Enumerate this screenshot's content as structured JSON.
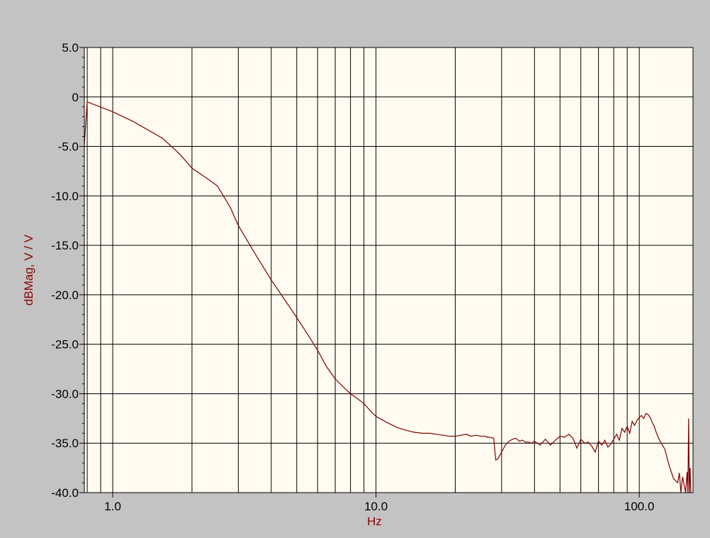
{
  "colors": {
    "background": "#c3c3c3",
    "plot_background": "#fffbf0",
    "grid": "#000000",
    "trace": "#7f0000",
    "label": "#8b0000"
  },
  "chart_data": {
    "type": "line",
    "title": "",
    "xlabel": "Hz",
    "ylabel": "dBMag, V / V",
    "x_scale": "log",
    "xlim": [
      0.78,
      160
    ],
    "ylim": [
      -40,
      5
    ],
    "grid": true,
    "x_tick_labels": [
      "1.0",
      "10.0",
      "100.0"
    ],
    "x_ticks": [
      1,
      10,
      100
    ],
    "y_tick_labels": [
      "5.0",
      "0",
      "-5.0",
      "-10.0",
      "-15.0",
      "-20.0",
      "-25.0",
      "-30.0",
      "-35.0",
      "-40.0"
    ],
    "y_ticks": [
      5,
      0,
      -5,
      -10,
      -15,
      -20,
      -25,
      -30,
      -35,
      -40
    ],
    "series": [
      {
        "x": [
          0.78,
          0.8,
          1.0,
          1.2,
          1.55,
          1.8,
          2.0,
          2.3,
          2.5,
          2.8,
          3.0,
          3.5,
          4.0,
          4.5,
          5.0,
          5.5,
          6.0,
          6.5,
          7.0,
          7.5,
          8.0,
          8.5,
          9.0,
          9.5,
          10.0,
          11.0,
          12.0,
          13.0,
          14.0,
          15.0,
          16.0,
          17.0,
          18.0,
          19.0,
          20.0,
          21.0,
          22.0,
          23.0,
          24.0,
          25.0,
          26.0,
          26.5,
          27.0,
          28.0,
          28.5,
          29.0,
          30.0,
          31.0,
          32.0,
          33.0,
          34.0,
          35.0,
          36.0,
          37.0,
          38.0,
          39.0,
          40.0,
          42.0,
          44.0,
          46.0,
          48.0,
          50.0,
          52.0,
          54.0,
          56.0,
          58.0,
          60.0,
          62.0,
          64.0,
          66.0,
          68.0,
          70.0,
          72.0,
          74.0,
          76.0,
          78.0,
          80.0,
          82.0,
          84.0,
          86.0,
          88.0,
          90.0,
          92.0,
          94.0,
          96.0,
          98.0,
          100.0,
          102.0,
          104.0,
          106.0,
          108.0,
          110.0,
          112.0,
          114.0,
          116.0,
          118.0,
          120.0,
          125.0,
          130.0,
          135.0,
          140.0,
          142.0,
          144.0,
          146.0,
          148.0,
          150.0,
          152.0,
          153.0,
          154.0,
          155.0,
          156.0,
          157.0
        ],
        "values": [
          -4.8,
          -0.5,
          -1.5,
          -2.5,
          -4.2,
          -5.8,
          -7.2,
          -8.3,
          -9.0,
          -11.2,
          -13.0,
          -16.0,
          -18.5,
          -20.5,
          -22.3,
          -24.0,
          -25.6,
          -27.3,
          -28.5,
          -29.3,
          -30.0,
          -30.5,
          -31.0,
          -31.7,
          -32.3,
          -32.9,
          -33.4,
          -33.7,
          -33.9,
          -34.0,
          -34.0,
          -34.1,
          -34.2,
          -34.3,
          -34.3,
          -34.2,
          -34.1,
          -34.3,
          -34.2,
          -34.3,
          -34.3,
          -34.4,
          -34.4,
          -34.5,
          -36.7,
          -36.6,
          -35.9,
          -35.2,
          -34.8,
          -34.6,
          -34.5,
          -34.8,
          -34.7,
          -34.9,
          -34.9,
          -35.0,
          -34.8,
          -35.2,
          -34.6,
          -35.2,
          -34.7,
          -34.3,
          -34.4,
          -34.1,
          -34.5,
          -35.5,
          -34.6,
          -35.0,
          -34.9,
          -35.3,
          -35.9,
          -34.8,
          -35.2,
          -34.7,
          -35.4,
          -35.1,
          -34.6,
          -34.1,
          -34.7,
          -33.5,
          -33.9,
          -33.3,
          -34.0,
          -32.8,
          -33.2,
          -32.7,
          -32.4,
          -32.2,
          -32.5,
          -32.0,
          -32.1,
          -32.4,
          -32.9,
          -33.3,
          -33.9,
          -34.4,
          -34.8,
          -35.6,
          -37.3,
          -38.6,
          -39.0,
          -38.0,
          -40.0,
          -38.4,
          -39.2,
          -40.0,
          -37.9,
          -40.0,
          -32.5,
          -40.0,
          -37.5,
          -40.0
        ]
      }
    ]
  }
}
